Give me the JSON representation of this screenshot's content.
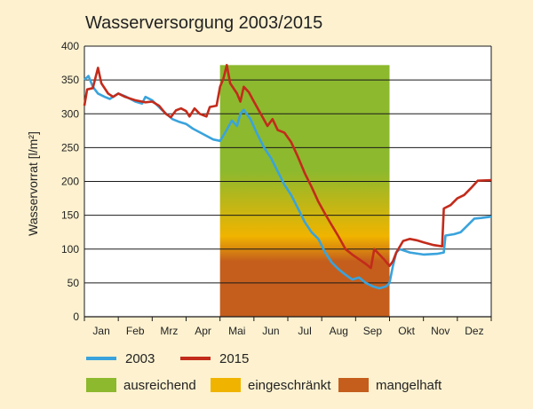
{
  "chart_data": {
    "type": "line",
    "title": "Wasserversorgung 2003/2015",
    "xlabel": "",
    "ylabel": "Wasservorrat [l/m²]",
    "ylim": [
      0,
      400
    ],
    "yticks": [
      0,
      50,
      100,
      150,
      200,
      250,
      300,
      350,
      400
    ],
    "months": [
      "Jan",
      "Feb",
      "Mrz",
      "Apr",
      "Mai",
      "Jun",
      "Jul",
      "Aug",
      "Sep",
      "Okt",
      "Nov",
      "Dez"
    ],
    "x_range": [
      0,
      12
    ],
    "x_unit": "Monate",
    "grid": "horizontal",
    "legend_position": "bottom",
    "band": {
      "x_start": 4.0,
      "x_end": 9.0,
      "top": 372,
      "zones": [
        {
          "name": "ausreichend",
          "color": "#8db92e"
        },
        {
          "name": "eingeschränkt",
          "color": "#f0b400"
        },
        {
          "name": "mangelhaft",
          "color": "#c55e1c"
        }
      ]
    },
    "series": [
      {
        "name": "2003",
        "color": "#3aa3dc",
        "points": [
          [
            0.0,
            350
          ],
          [
            0.12,
            356
          ],
          [
            0.25,
            340
          ],
          [
            0.4,
            330
          ],
          [
            0.6,
            325
          ],
          [
            0.75,
            322
          ],
          [
            1.0,
            330
          ],
          [
            1.2,
            326
          ],
          [
            1.5,
            318
          ],
          [
            1.7,
            315
          ],
          [
            1.8,
            325
          ],
          [
            2.0,
            320
          ],
          [
            2.3,
            305
          ],
          [
            2.6,
            292
          ],
          [
            2.8,
            288
          ],
          [
            3.0,
            285
          ],
          [
            3.2,
            278
          ],
          [
            3.5,
            270
          ],
          [
            3.8,
            262
          ],
          [
            4.0,
            260
          ],
          [
            4.15,
            272
          ],
          [
            4.35,
            290
          ],
          [
            4.5,
            282
          ],
          [
            4.6,
            300
          ],
          [
            4.7,
            306
          ],
          [
            4.9,
            292
          ],
          [
            5.1,
            270
          ],
          [
            5.3,
            250
          ],
          [
            5.5,
            235
          ],
          [
            5.7,
            215
          ],
          [
            5.9,
            195
          ],
          [
            6.1,
            180
          ],
          [
            6.3,
            160
          ],
          [
            6.5,
            140
          ],
          [
            6.7,
            125
          ],
          [
            6.9,
            115
          ],
          [
            7.1,
            95
          ],
          [
            7.3,
            80
          ],
          [
            7.5,
            70
          ],
          [
            7.7,
            62
          ],
          [
            7.9,
            55
          ],
          [
            8.1,
            58
          ],
          [
            8.3,
            50
          ],
          [
            8.5,
            45
          ],
          [
            8.7,
            42
          ],
          [
            8.9,
            45
          ],
          [
            9.0,
            50
          ],
          [
            9.1,
            75
          ],
          [
            9.2,
            95
          ],
          [
            9.3,
            100
          ],
          [
            9.6,
            95
          ],
          [
            10.0,
            92
          ],
          [
            10.4,
            93
          ],
          [
            10.6,
            95
          ],
          [
            10.65,
            120
          ],
          [
            10.9,
            122
          ],
          [
            11.1,
            125
          ],
          [
            11.3,
            135
          ],
          [
            11.5,
            145
          ],
          [
            11.7,
            146
          ],
          [
            12.0,
            148
          ]
        ]
      },
      {
        "name": "2015",
        "color": "#c32b1b",
        "points": [
          [
            0.0,
            312
          ],
          [
            0.08,
            336
          ],
          [
            0.25,
            338
          ],
          [
            0.4,
            368
          ],
          [
            0.5,
            345
          ],
          [
            0.7,
            330
          ],
          [
            0.85,
            325
          ],
          [
            1.0,
            330
          ],
          [
            1.2,
            325
          ],
          [
            1.5,
            320
          ],
          [
            1.8,
            317
          ],
          [
            2.0,
            318
          ],
          [
            2.2,
            312
          ],
          [
            2.4,
            300
          ],
          [
            2.55,
            295
          ],
          [
            2.7,
            305
          ],
          [
            2.85,
            308
          ],
          [
            3.0,
            304
          ],
          [
            3.1,
            296
          ],
          [
            3.25,
            308
          ],
          [
            3.4,
            300
          ],
          [
            3.6,
            296
          ],
          [
            3.7,
            310
          ],
          [
            3.9,
            312
          ],
          [
            4.0,
            340
          ],
          [
            4.1,
            352
          ],
          [
            4.2,
            372
          ],
          [
            4.3,
            345
          ],
          [
            4.5,
            330
          ],
          [
            4.6,
            318
          ],
          [
            4.7,
            340
          ],
          [
            4.85,
            332
          ],
          [
            5.0,
            318
          ],
          [
            5.2,
            300
          ],
          [
            5.4,
            282
          ],
          [
            5.55,
            292
          ],
          [
            5.7,
            276
          ],
          [
            5.9,
            272
          ],
          [
            6.1,
            258
          ],
          [
            6.3,
            236
          ],
          [
            6.5,
            212
          ],
          [
            6.7,
            192
          ],
          [
            6.9,
            170
          ],
          [
            7.1,
            152
          ],
          [
            7.3,
            135
          ],
          [
            7.5,
            118
          ],
          [
            7.7,
            100
          ],
          [
            7.9,
            92
          ],
          [
            8.1,
            85
          ],
          [
            8.3,
            78
          ],
          [
            8.45,
            72
          ],
          [
            8.55,
            100
          ],
          [
            8.7,
            92
          ],
          [
            8.85,
            84
          ],
          [
            9.0,
            75
          ],
          [
            9.1,
            82
          ],
          [
            9.2,
            95
          ],
          [
            9.4,
            112
          ],
          [
            9.6,
            115
          ],
          [
            9.8,
            113
          ],
          [
            10.0,
            110
          ],
          [
            10.3,
            106
          ],
          [
            10.55,
            104
          ],
          [
            10.6,
            160
          ],
          [
            10.8,
            165
          ],
          [
            11.0,
            175
          ],
          [
            11.2,
            180
          ],
          [
            11.4,
            190
          ],
          [
            11.6,
            201
          ],
          [
            12.0,
            202
          ]
        ]
      }
    ]
  }
}
